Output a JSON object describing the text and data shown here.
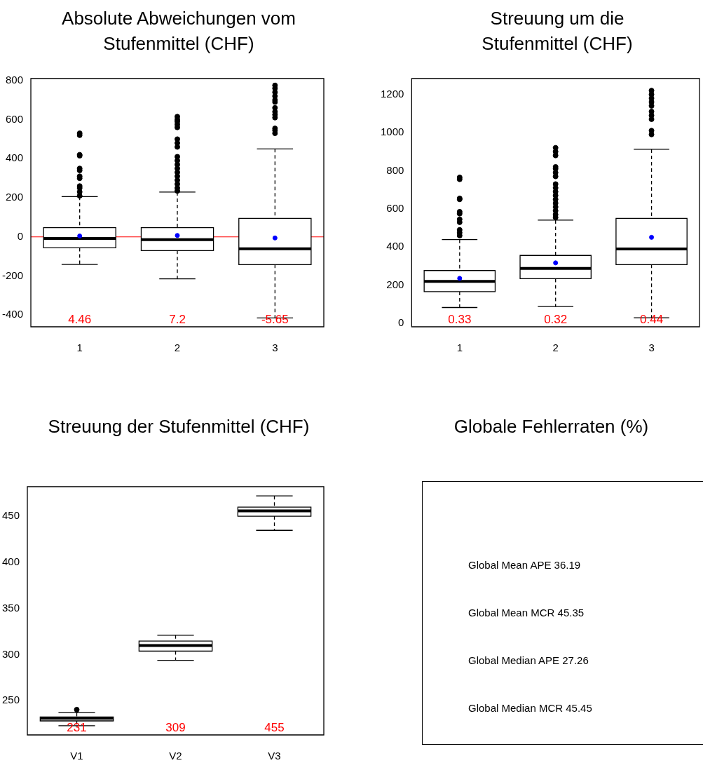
{
  "chart_data": [
    {
      "type": "box",
      "title": "Absolute Abweichungen vom Stufenmittel (CHF)",
      "categories": [
        "1",
        "2",
        "3"
      ],
      "ylim": [
        -460,
        810
      ],
      "yticks": [
        -400,
        -200,
        0,
        200,
        400,
        600,
        800
      ],
      "grid": false,
      "legend": false,
      "boxes": [
        {
          "low": -141,
          "q1": -56,
          "median": -8,
          "q3": 47,
          "high": 206,
          "mean": 4.46,
          "outliers": [
            210,
            230,
            250,
            260,
            300,
            310,
            340,
            350,
            415,
            420,
            520,
            530
          ]
        },
        {
          "low": -215,
          "q1": -70,
          "median": -14,
          "q3": 47,
          "high": 229,
          "mean": 7.2,
          "outliers": [
            235,
            250,
            270,
            290,
            310,
            330,
            350,
            370,
            390,
            410,
            460,
            480,
            500,
            560,
            575,
            590,
            600,
            615
          ]
        },
        {
          "low": -415,
          "q1": -142,
          "median": -61,
          "q3": 95,
          "high": 450,
          "mean": -5.65,
          "outliers": [
            530,
            545,
            555,
            610,
            625,
            640,
            660,
            690,
            700,
            720,
            740,
            760,
            775
          ]
        }
      ],
      "ref_lines": [
        {
          "axis": "y",
          "value": 0,
          "color": "#ff0000"
        }
      ],
      "annotations": [
        "4.46",
        "7.2",
        "-5.65"
      ]
    },
    {
      "type": "box",
      "title": "Streuung um die Stufenmittel (CHF)",
      "categories": [
        "1",
        "2",
        "3"
      ],
      "ylim": [
        -18,
        1283
      ],
      "yticks": [
        0,
        200,
        400,
        600,
        800,
        1000,
        1200
      ],
      "grid": false,
      "legend": false,
      "boxes": [
        {
          "low": 83,
          "q1": 166,
          "median": 220,
          "q3": 277,
          "high": 439,
          "mean": 236,
          "outliers": [
            460,
            475,
            490,
            530,
            545,
            575,
            585,
            650,
            655,
            755,
            765
          ]
        },
        {
          "low": 88,
          "q1": 234,
          "median": 288,
          "q3": 356,
          "high": 541,
          "mean": 317,
          "outliers": [
            555,
            570,
            590,
            610,
            630,
            650,
            670,
            690,
            710,
            730,
            770,
            790,
            810,
            820,
            880,
            900,
            920
          ]
        },
        {
          "low": 29,
          "q1": 308,
          "median": 390,
          "q3": 550,
          "high": 912,
          "mean": 451,
          "outliers": [
            990,
            1010,
            1070,
            1090,
            1110,
            1140,
            1160,
            1180,
            1200,
            1220
          ]
        }
      ],
      "annotations": [
        "0.33",
        "0.32",
        "0.44"
      ]
    },
    {
      "type": "box",
      "title": "Streuung der Stufenmittel (CHF)",
      "categories": [
        "V1",
        "V2",
        "V3"
      ],
      "ylim": [
        213,
        482
      ],
      "yticks": [
        250,
        300,
        350,
        400,
        450
      ],
      "grid": false,
      "legend": false,
      "boxes": [
        {
          "low": 223,
          "q1": 228.2,
          "median": 231,
          "q3": 232.5,
          "high": 237,
          "outliers": [
            240.4
          ]
        },
        {
          "low": 293.8,
          "q1": 303.8,
          "median": 309.8,
          "q3": 314.8,
          "high": 321
        },
        {
          "low": 434.7,
          "q1": 450,
          "median": 455.7,
          "q3": 459.8,
          "high": 472
        }
      ],
      "annotations": [
        "231",
        "309",
        "455"
      ]
    },
    {
      "type": "other",
      "title": "Globale Fehlerraten (%)",
      "annotations": [
        "Global Mean APE 36.19",
        "Global Mean MCR 45.35",
        "Global Median APE 27.26",
        "Global Median MCR 45.45"
      ]
    }
  ]
}
